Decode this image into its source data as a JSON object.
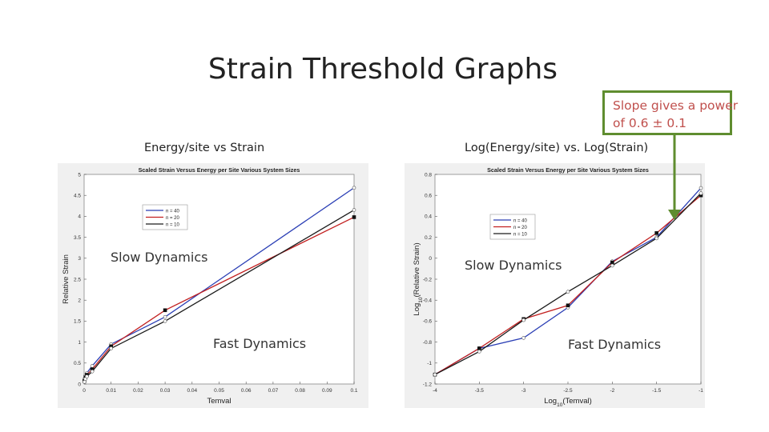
{
  "slide": {
    "title": "Strain Threshold Graphs"
  },
  "note": {
    "line1": "Slope gives a power",
    "line2": "of 0.6 ± 0.1"
  },
  "captions": {
    "left": "Energy/site vs Strain",
    "right": "Log(Energy/site) vs. Log(Strain)"
  },
  "overlays": {
    "left_slow": "Slow Dynamics",
    "left_fast": "Fast Dynamics",
    "right_slow": "Slow Dynamics",
    "right_fast": "Fast Dynamics"
  },
  "colors": {
    "n40": "#2b3fb5",
    "n20": "#c22020",
    "n10": "#1a1a1a",
    "note_border": "#5f8d2f",
    "note_text": "#c0504d"
  },
  "chart_data": [
    {
      "type": "line",
      "title": "Scaled Strain Versus Energy per Site Various System Sizes",
      "xlabel": "Temval",
      "ylabel": "Relative Strain",
      "xlim": [
        0,
        0.1
      ],
      "ylim": [
        0,
        5
      ],
      "xticks": [
        0,
        0.01,
        0.02,
        0.03,
        0.04,
        0.05,
        0.06,
        0.07,
        0.08,
        0.09,
        0.1
      ],
      "xtick_labels": [
        "0",
        "0.01",
        "0.02",
        "0.03",
        "0.04",
        "0.05",
        "0.06",
        "0.07",
        "0.08",
        "0.09",
        "0.1"
      ],
      "yticks": [
        0,
        0.5,
        1,
        1.5,
        2,
        2.5,
        3,
        3.5,
        4,
        4.5,
        5
      ],
      "ytick_labels": [
        "0",
        "0.5",
        "1",
        "1.5",
        "2",
        "2.5",
        "3",
        "3.5",
        "4",
        "4.5",
        "5"
      ],
      "legend_position": "upper-left",
      "series": [
        {
          "name": "n = 40",
          "color": "#2b3fb5",
          "marker": "o",
          "x": [
            0.0001,
            0.0005,
            0.001,
            0.003,
            0.01,
            0.03,
            0.1
          ],
          "y": [
            0.12,
            0.2,
            0.26,
            0.43,
            0.95,
            1.6,
            4.68
          ]
        },
        {
          "name": "n = 20",
          "color": "#c22020",
          "marker": "s",
          "x": [
            0.0001,
            0.0005,
            0.001,
            0.003,
            0.01,
            0.03,
            0.1
          ],
          "y": [
            0.07,
            0.16,
            0.22,
            0.35,
            0.9,
            1.76,
            3.98
          ]
        },
        {
          "name": "n = 10",
          "color": "#1a1a1a",
          "marker": "o",
          "x": [
            0.0001,
            0.0005,
            0.001,
            0.003,
            0.01,
            0.03,
            0.1
          ],
          "y": [
            0.05,
            0.12,
            0.18,
            0.3,
            0.85,
            1.5,
            4.15
          ]
        }
      ]
    },
    {
      "type": "line",
      "title": "Scaled Strain Versus Energy per Site Various System Sizes",
      "xlabel": "Log10(Temval)",
      "ylabel": "Log10(Relative Strain)",
      "xlim": [
        -4,
        -1
      ],
      "ylim": [
        -1.2,
        0.8
      ],
      "xticks": [
        -4,
        -3.5,
        -3,
        -2.5,
        -2,
        -1.5,
        -1
      ],
      "xtick_labels": [
        "-4",
        "-3.5",
        "-3",
        "-2.5",
        "-2",
        "-1.5",
        "-1"
      ],
      "yticks": [
        -1.2,
        -1,
        -0.8,
        -0.6,
        -0.4,
        -0.2,
        0,
        0.2,
        0.4,
        0.6,
        0.8
      ],
      "ytick_labels": [
        "-1.2",
        "-1",
        "-0.8",
        "-0.6",
        "-0.4",
        "-0.2",
        "0",
        "0.2",
        "0.4",
        "0.6",
        "0.8"
      ],
      "legend_position": "upper-left",
      "series": [
        {
          "name": "n = 40",
          "color": "#2b3fb5",
          "marker": "o",
          "x": [
            -4,
            -3.5,
            -3,
            -2.5,
            -2,
            -1.5,
            -1
          ],
          "y": [
            -1.11,
            -0.86,
            -0.76,
            -0.47,
            -0.03,
            0.2,
            0.67
          ]
        },
        {
          "name": "n = 20",
          "color": "#c22020",
          "marker": "s",
          "x": [
            -4,
            -3.5,
            -3,
            -2.5,
            -2,
            -1.5,
            -1
          ],
          "y": [
            -1.11,
            -0.86,
            -0.58,
            -0.45,
            -0.04,
            0.24,
            0.6
          ]
        },
        {
          "name": "n = 10",
          "color": "#1a1a1a",
          "marker": "o",
          "x": [
            -4,
            -3.5,
            -3,
            -2.5,
            -2,
            -1.5,
            -1
          ],
          "y": [
            -1.11,
            -0.89,
            -0.59,
            -0.32,
            -0.07,
            0.19,
            0.62
          ]
        }
      ]
    }
  ]
}
